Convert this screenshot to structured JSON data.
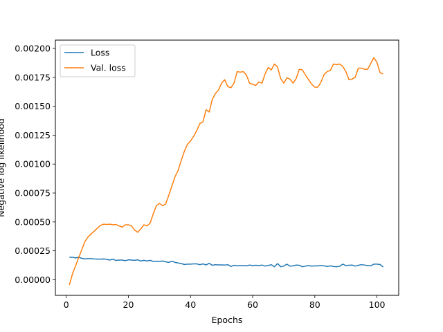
{
  "chart_data": {
    "type": "line",
    "xlabel": "Epochs",
    "ylabel": "Negative log likelihood",
    "xlim": [
      -3.5,
      107
    ],
    "ylim": [
      -0.000135,
      0.002072
    ],
    "xticks": [
      0,
      20,
      40,
      60,
      80,
      100
    ],
    "yticks": [
      0.0,
      0.00025,
      0.0005,
      0.00075,
      0.001,
      0.00125,
      0.0015,
      0.00175,
      0.002
    ],
    "xtick_labels": [
      "0",
      "20",
      "40",
      "60",
      "80",
      "100"
    ],
    "ytick_labels": [
      "0.00000",
      "0.00025",
      "0.00050",
      "0.00075",
      "0.00100",
      "0.00125",
      "0.00150",
      "0.00175",
      "0.00200"
    ],
    "grid": false,
    "legend_position": "top-left",
    "series": [
      {
        "name": "Loss",
        "color": "#1f77b4",
        "x": [
          1,
          2,
          3,
          4,
          5,
          6,
          7,
          8,
          9,
          10,
          11,
          12,
          13,
          14,
          15,
          16,
          17,
          18,
          19,
          20,
          21,
          22,
          23,
          24,
          25,
          26,
          27,
          28,
          29,
          30,
          31,
          32,
          33,
          34,
          35,
          36,
          37,
          38,
          39,
          40,
          41,
          42,
          43,
          44,
          45,
          46,
          47,
          48,
          49,
          50,
          51,
          52,
          53,
          54,
          55,
          56,
          57,
          58,
          59,
          60,
          61,
          62,
          63,
          64,
          65,
          66,
          67,
          68,
          69,
          70,
          71,
          72,
          73,
          74,
          75,
          76,
          77,
          78,
          79,
          80,
          81,
          82,
          83,
          84,
          85,
          86,
          87,
          88,
          89,
          90,
          91,
          92,
          93,
          94,
          95,
          96,
          97,
          98,
          99,
          100,
          101,
          102
        ],
        "values": [
          0.000195,
          0.000195,
          0.000188,
          0.000195,
          0.000185,
          0.00018,
          0.000183,
          0.000183,
          0.00018,
          0.000178,
          0.000178,
          0.00018,
          0.000177,
          0.00017,
          0.000178,
          0.000167,
          0.00017,
          0.00017,
          0.000165,
          0.000172,
          0.00017,
          0.000168,
          0.000172,
          0.000162,
          0.000168,
          0.000162,
          0.000168,
          0.000158,
          0.00016,
          0.000158,
          0.000162,
          0.000155,
          0.00015,
          0.00016,
          0.00015,
          0.000145,
          0.00014,
          0.000132,
          0.000135,
          0.000135,
          0.000137,
          0.000137,
          0.00013,
          0.000137,
          0.000128,
          0.000142,
          0.000125,
          0.00013,
          0.000128,
          0.000128,
          0.000127,
          0.00013,
          0.000115,
          0.000125,
          0.00012,
          0.000122,
          0.000122,
          0.00012,
          0.000127,
          0.000122,
          0.000125,
          0.000122,
          0.000127,
          0.000118,
          0.000123,
          0.00013,
          0.000112,
          0.00014,
          0.000112,
          0.000118,
          0.000135,
          0.000118,
          0.00012,
          0.000127,
          0.000125,
          0.000112,
          0.000118,
          0.000122,
          0.000118,
          0.00012,
          0.00012,
          0.000122,
          0.00012,
          0.000115,
          0.00012,
          0.000115,
          0.000112,
          0.000117,
          0.000135,
          0.000122,
          0.000125,
          0.000127,
          0.000118,
          0.000125,
          0.00013,
          0.000127,
          0.000122,
          0.00012,
          0.000135,
          0.000135,
          0.000132,
          0.00011
        ]
      },
      {
        "name": "Val. loss",
        "color": "#ff7f0e",
        "x": [
          1,
          2,
          3,
          4,
          5,
          6,
          7,
          8,
          9,
          10,
          11,
          12,
          13,
          14,
          15,
          16,
          17,
          18,
          19,
          20,
          21,
          22,
          23,
          24,
          25,
          26,
          27,
          28,
          29,
          30,
          31,
          32,
          33,
          34,
          35,
          36,
          37,
          38,
          39,
          40,
          41,
          42,
          43,
          44,
          45,
          46,
          47,
          48,
          49,
          50,
          51,
          52,
          53,
          54,
          55,
          56,
          57,
          58,
          59,
          60,
          61,
          62,
          63,
          64,
          65,
          66,
          67,
          68,
          69,
          70,
          71,
          72,
          73,
          74,
          75,
          76,
          77,
          78,
          79,
          80,
          81,
          82,
          83,
          84,
          85,
          86,
          87,
          88,
          89,
          90,
          91,
          92,
          93,
          94,
          95,
          96,
          97,
          98,
          99,
          100,
          101,
          102
        ],
        "values": [
          -4.5e-05,
          5e-05,
          0.00012,
          0.00019,
          0.00026,
          0.00033,
          0.00037,
          0.000395,
          0.00042,
          0.000445,
          0.00047,
          0.00048,
          0.000478,
          0.00048,
          0.000475,
          0.000478,
          0.000465,
          0.000455,
          0.000475,
          0.000475,
          0.000465,
          0.00043,
          0.00041,
          0.00044,
          0.000475,
          0.000465,
          0.00049,
          0.00057,
          0.00064,
          0.00066,
          0.00064,
          0.000655,
          0.00073,
          0.00081,
          0.00089,
          0.000945,
          0.00103,
          0.00111,
          0.00117,
          0.0012,
          0.00124,
          0.00129,
          0.00135,
          0.001365,
          0.00147,
          0.00145,
          0.00156,
          0.00161,
          0.00164,
          0.0017,
          0.00173,
          0.00167,
          0.00166,
          0.0017,
          0.0018,
          0.001795,
          0.0018,
          0.00177,
          0.0017,
          0.00169,
          0.00168,
          0.00171,
          0.0017,
          0.00178,
          0.001835,
          0.001815,
          0.001865,
          0.00184,
          0.00174,
          0.0017,
          0.001745,
          0.001735,
          0.0017,
          0.00174,
          0.00182,
          0.001815,
          0.00177,
          0.00173,
          0.00169,
          0.001665,
          0.001665,
          0.00171,
          0.001775,
          0.0018,
          0.00181,
          0.001865,
          0.00186,
          0.001865,
          0.001845,
          0.0018,
          0.00173,
          0.001735,
          0.00175,
          0.00183,
          0.00183,
          0.00182,
          0.00182,
          0.00187,
          0.00192,
          0.00188,
          0.00179,
          0.00178
        ]
      }
    ]
  }
}
